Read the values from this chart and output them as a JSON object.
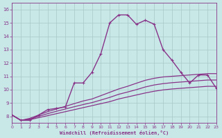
{
  "xlabel": "Windchill (Refroidissement éolien,°C)",
  "background_color": "#c8e8e8",
  "grid_color": "#a8c8c8",
  "line_color": "#883388",
  "xlim": [
    0,
    23
  ],
  "ylim": [
    7.5,
    16.5
  ],
  "xticks": [
    0,
    1,
    2,
    3,
    4,
    5,
    6,
    7,
    8,
    9,
    10,
    11,
    12,
    13,
    14,
    15,
    16,
    17,
    18,
    19,
    20,
    21,
    22,
    23
  ],
  "yticks": [
    8,
    9,
    10,
    11,
    12,
    13,
    14,
    15,
    16
  ],
  "series": [
    {
      "x": [
        0,
        1,
        2,
        3,
        4,
        5,
        6,
        7,
        8,
        9,
        10,
        11,
        12,
        13,
        14,
        15,
        16,
        17,
        18,
        19,
        20,
        21,
        22,
        23
      ],
      "y": [
        8.1,
        7.7,
        7.7,
        8.1,
        8.5,
        8.6,
        8.7,
        10.5,
        10.5,
        11.3,
        12.7,
        15.0,
        15.6,
        15.6,
        14.9,
        15.2,
        14.9,
        13.0,
        12.2,
        11.3,
        10.5,
        11.1,
        11.1,
        10.1
      ],
      "marker": true,
      "markersize": 2.5,
      "linewidth": 1.0
    },
    {
      "x": [
        0,
        1,
        2,
        3,
        4,
        5,
        6,
        7,
        8,
        9,
        10,
        11,
        12,
        13,
        14,
        15,
        16,
        17,
        18,
        19,
        20,
        21,
        22,
        23
      ],
      "y": [
        8.1,
        7.7,
        7.75,
        7.9,
        8.05,
        8.2,
        8.35,
        8.5,
        8.65,
        8.8,
        8.95,
        9.1,
        9.3,
        9.45,
        9.6,
        9.75,
        9.88,
        9.98,
        10.05,
        10.1,
        10.15,
        10.2,
        10.25,
        10.25
      ],
      "marker": false,
      "markersize": 0,
      "linewidth": 0.9
    },
    {
      "x": [
        0,
        1,
        2,
        3,
        4,
        5,
        6,
        7,
        8,
        9,
        10,
        11,
        12,
        13,
        14,
        15,
        16,
        17,
        18,
        19,
        20,
        21,
        22,
        23
      ],
      "y": [
        8.1,
        7.7,
        7.8,
        8.0,
        8.2,
        8.38,
        8.55,
        8.72,
        8.88,
        9.03,
        9.22,
        9.42,
        9.65,
        9.82,
        10.0,
        10.2,
        10.35,
        10.45,
        10.52,
        10.57,
        10.62,
        10.67,
        10.72,
        10.72
      ],
      "marker": false,
      "markersize": 0,
      "linewidth": 0.9
    },
    {
      "x": [
        0,
        1,
        2,
        3,
        4,
        5,
        6,
        7,
        8,
        9,
        10,
        11,
        12,
        13,
        14,
        15,
        16,
        17,
        18,
        19,
        20,
        21,
        22,
        23
      ],
      "y": [
        8.1,
        7.7,
        7.85,
        8.1,
        8.35,
        8.55,
        8.75,
        8.95,
        9.15,
        9.3,
        9.55,
        9.8,
        10.05,
        10.25,
        10.48,
        10.7,
        10.85,
        10.95,
        11.0,
        11.05,
        11.1,
        11.15,
        11.2,
        11.2
      ],
      "marker": false,
      "markersize": 0,
      "linewidth": 0.9
    }
  ]
}
